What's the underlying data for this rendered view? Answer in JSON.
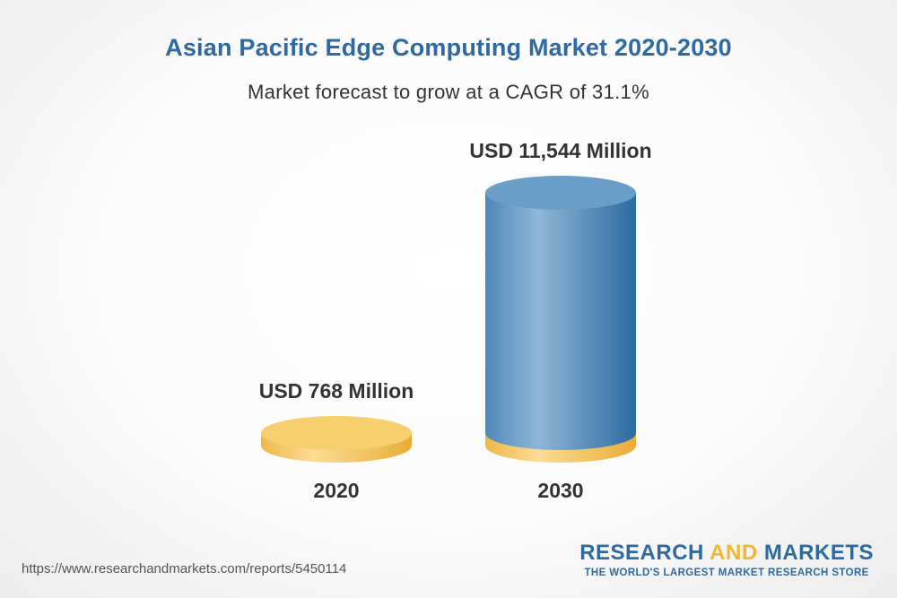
{
  "chart_data": {
    "type": "bar",
    "title": "Asian Pacific Edge Computing Market 2020-2030",
    "subtitle": "Market forecast to grow at a CAGR of 31.1%",
    "categories": [
      "2020",
      "2030"
    ],
    "values": [
      768,
      11544
    ],
    "value_labels": [
      "USD 768 Million",
      "USD 11,544 Million"
    ],
    "unit": "USD Million",
    "colors": {
      "base": "#f2c25a",
      "bar": "#5b92c0",
      "bar_dark": "#2f6ea3",
      "label": "#333333"
    }
  },
  "footer": {
    "url": "https://www.researchandmarkets.com/reports/5450114"
  },
  "brand": {
    "name_part1": "RESEARCH ",
    "name_part2": "AND",
    "name_part3": " MARKETS",
    "tagline": "THE WORLD'S LARGEST MARKET RESEARCH STORE"
  }
}
